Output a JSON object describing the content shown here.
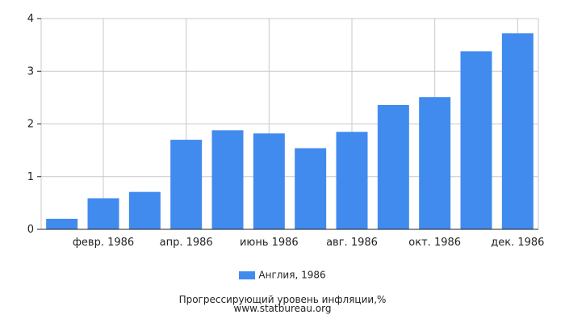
{
  "chart_data": {
    "type": "bar",
    "categories": [
      "янв. 1986",
      "февр. 1986",
      "март 1986",
      "апр. 1986",
      "май 1986",
      "июнь 1986",
      "июль 1986",
      "авг. 1986",
      "сент. 1986",
      "окт. 1986",
      "нояб. 1986",
      "дек. 1986"
    ],
    "x_tick_labels": [
      "",
      "февр. 1986",
      "",
      "апр. 1986",
      "",
      "июнь 1986",
      "",
      "авг. 1986",
      "",
      "окт. 1986",
      "",
      "дек. 1986"
    ],
    "series": [
      {
        "name": "Англия, 1986",
        "values": [
          0.2,
          0.59,
          0.71,
          1.7,
          1.88,
          1.82,
          1.54,
          1.85,
          2.36,
          2.51,
          3.38,
          3.72
        ],
        "color": "#418bee"
      }
    ],
    "ylim": [
      0,
      4
    ],
    "yticks": [
      0,
      1,
      2,
      3,
      4
    ],
    "grid": true,
    "legend_position": "bottom"
  },
  "footer": {
    "caption": "Прогрессирующий уровень инфляции,%",
    "source": "www.statbureau.org"
  }
}
